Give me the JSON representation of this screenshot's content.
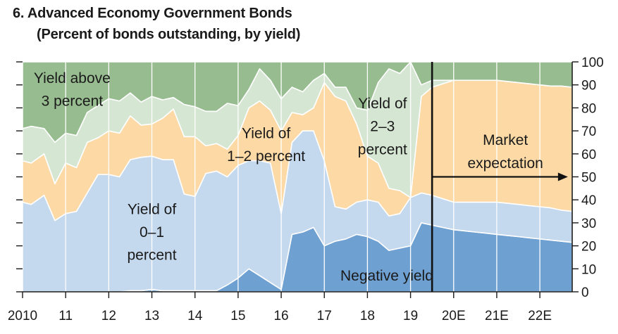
{
  "titles": {
    "line1": "6. Advanced Economy Government Bonds",
    "line2": "(Percent of bonds outstanding, by yield)"
  },
  "chart_data": {
    "type": "area",
    "stacked": true,
    "x_tick_labels": [
      "2010",
      "11",
      "12",
      "13",
      "14",
      "15",
      "16",
      "17",
      "18",
      "19",
      "20E",
      "21E",
      "22E"
    ],
    "x_tick_positions": [
      2010,
      2011,
      2012,
      2013,
      2014,
      2015,
      2016,
      2017,
      2018,
      2019,
      2020,
      2021,
      2022
    ],
    "xlim": [
      2010,
      2022.75
    ],
    "ylim": [
      0,
      100
    ],
    "y_ticks": [
      0,
      10,
      20,
      30,
      40,
      50,
      60,
      70,
      80,
      90,
      100
    ],
    "y_axis_side": "right",
    "x": [
      2010.0,
      2010.2,
      2010.5,
      2010.75,
      2011.0,
      2011.25,
      2011.5,
      2011.75,
      2012.0,
      2012.25,
      2012.5,
      2012.75,
      2013.0,
      2013.25,
      2013.5,
      2013.75,
      2014.0,
      2014.25,
      2014.5,
      2014.75,
      2015.0,
      2015.25,
      2015.5,
      2015.75,
      2016.0,
      2016.25,
      2016.5,
      2016.75,
      2017.0,
      2017.25,
      2017.5,
      2017.75,
      2018.0,
      2018.25,
      2018.5,
      2018.75,
      2019.0,
      2019.25,
      2019.5,
      2020.0,
      2020.25,
      2020.5,
      2020.75,
      2021.0,
      2021.25,
      2021.5,
      2021.75,
      2022.0,
      2022.25,
      2022.5,
      2022.75
    ],
    "series": [
      {
        "name": "Negative yield",
        "color": "#6fa0d2",
        "values": [
          0,
          0,
          0,
          0,
          0,
          0,
          0,
          0,
          0,
          0,
          0.5,
          0.5,
          1,
          0.5,
          0.5,
          0.5,
          0.5,
          0.5,
          0.5,
          3,
          6,
          10,
          7,
          4,
          1,
          25,
          26,
          28,
          20,
          22,
          23,
          25,
          24,
          22,
          18,
          19,
          20,
          30,
          29,
          27,
          26.5,
          26,
          25.5,
          25,
          24.5,
          24,
          23.5,
          23,
          22.5,
          22,
          21.5
        ]
      },
      {
        "name": "Yield of 0–1 percent",
        "color": "#c4d8ee",
        "values": [
          39,
          38,
          42,
          31,
          34,
          35,
          43,
          51,
          51,
          50,
          57,
          58,
          58,
          57,
          57,
          42,
          41,
          51,
          52,
          47,
          49,
          47,
          50,
          52,
          33,
          40,
          44,
          42,
          37,
          15,
          13,
          14,
          16,
          17,
          15,
          15,
          21,
          13,
          13,
          12,
          12.5,
          13,
          13.5,
          14,
          14,
          14,
          14,
          14,
          14,
          13.5,
          13.5
        ]
      },
      {
        "name": "Yield of 1–2 percent",
        "color": "#fcd9a5",
        "values": [
          18,
          18,
          18,
          16,
          22,
          19,
          22,
          16,
          19,
          19,
          19,
          14,
          14,
          18,
          22,
          25,
          26,
          12,
          12,
          12,
          13,
          23,
          26,
          23,
          36,
          13,
          7,
          10,
          34,
          48,
          47,
          34,
          19,
          17,
          12,
          10,
          0,
          42,
          47,
          53,
          53,
          53,
          53,
          53,
          53,
          53,
          53,
          53,
          53,
          54,
          54
        ]
      },
      {
        "name": "Yield of 2–3 percent",
        "color": "#d5e6d3",
        "values": [
          14,
          16,
          11,
          18,
          13,
          14,
          13,
          14,
          14,
          14,
          10,
          10,
          12,
          8,
          5,
          14,
          13,
          15,
          14,
          20,
          13,
          8,
          14,
          13,
          14,
          11,
          10,
          12,
          4,
          4,
          6,
          7,
          20,
          35,
          52,
          51,
          59,
          5,
          3,
          0,
          0,
          0,
          0,
          0,
          0,
          0,
          0,
          0,
          0,
          0,
          0
        ]
      },
      {
        "name": "Yield above 3 percent",
        "color": "#97bc8f",
        "values": [
          29,
          28,
          29,
          35,
          31,
          32,
          22,
          19,
          16,
          17,
          13.5,
          17.5,
          15,
          16.5,
          15.5,
          18.5,
          19.5,
          21.5,
          21.5,
          18,
          19,
          12,
          3,
          8,
          16,
          11,
          13,
          8,
          5,
          11,
          11,
          20,
          21,
          9,
          3,
          5,
          0,
          10,
          8,
          8,
          8,
          8,
          8,
          8,
          8.5,
          9,
          9.5,
          10,
          10.5,
          10.5,
          11
        ]
      }
    ],
    "forecast_divider_x": 2019.5,
    "annotations": [
      {
        "text": "Yield above",
        "x": 2011.15,
        "y": 93
      },
      {
        "text": "3 percent",
        "x": 2011.15,
        "y": 83
      },
      {
        "text": "Yield of",
        "x": 2015.65,
        "y": 69
      },
      {
        "text": "1–2 percent",
        "x": 2015.65,
        "y": 59
      },
      {
        "text": "Yield of",
        "x": 2013.0,
        "y": 36
      },
      {
        "text": "0–1",
        "x": 2013.0,
        "y": 26
      },
      {
        "text": "percent",
        "x": 2013.0,
        "y": 16
      },
      {
        "text": "Yield of",
        "x": 2018.35,
        "y": 82
      },
      {
        "text": "2–3",
        "x": 2018.35,
        "y": 72
      },
      {
        "text": "percent",
        "x": 2018.35,
        "y": 62
      },
      {
        "text": "Negative yield",
        "x": 2018.45,
        "y": 7
      },
      {
        "text": "Market",
        "x": 2021.2,
        "y": 66
      },
      {
        "text": "expectation",
        "x": 2021.2,
        "y": 56
      }
    ],
    "arrow": {
      "from_x": 2019.5,
      "to_x": 2022.65,
      "y": 50
    }
  }
}
